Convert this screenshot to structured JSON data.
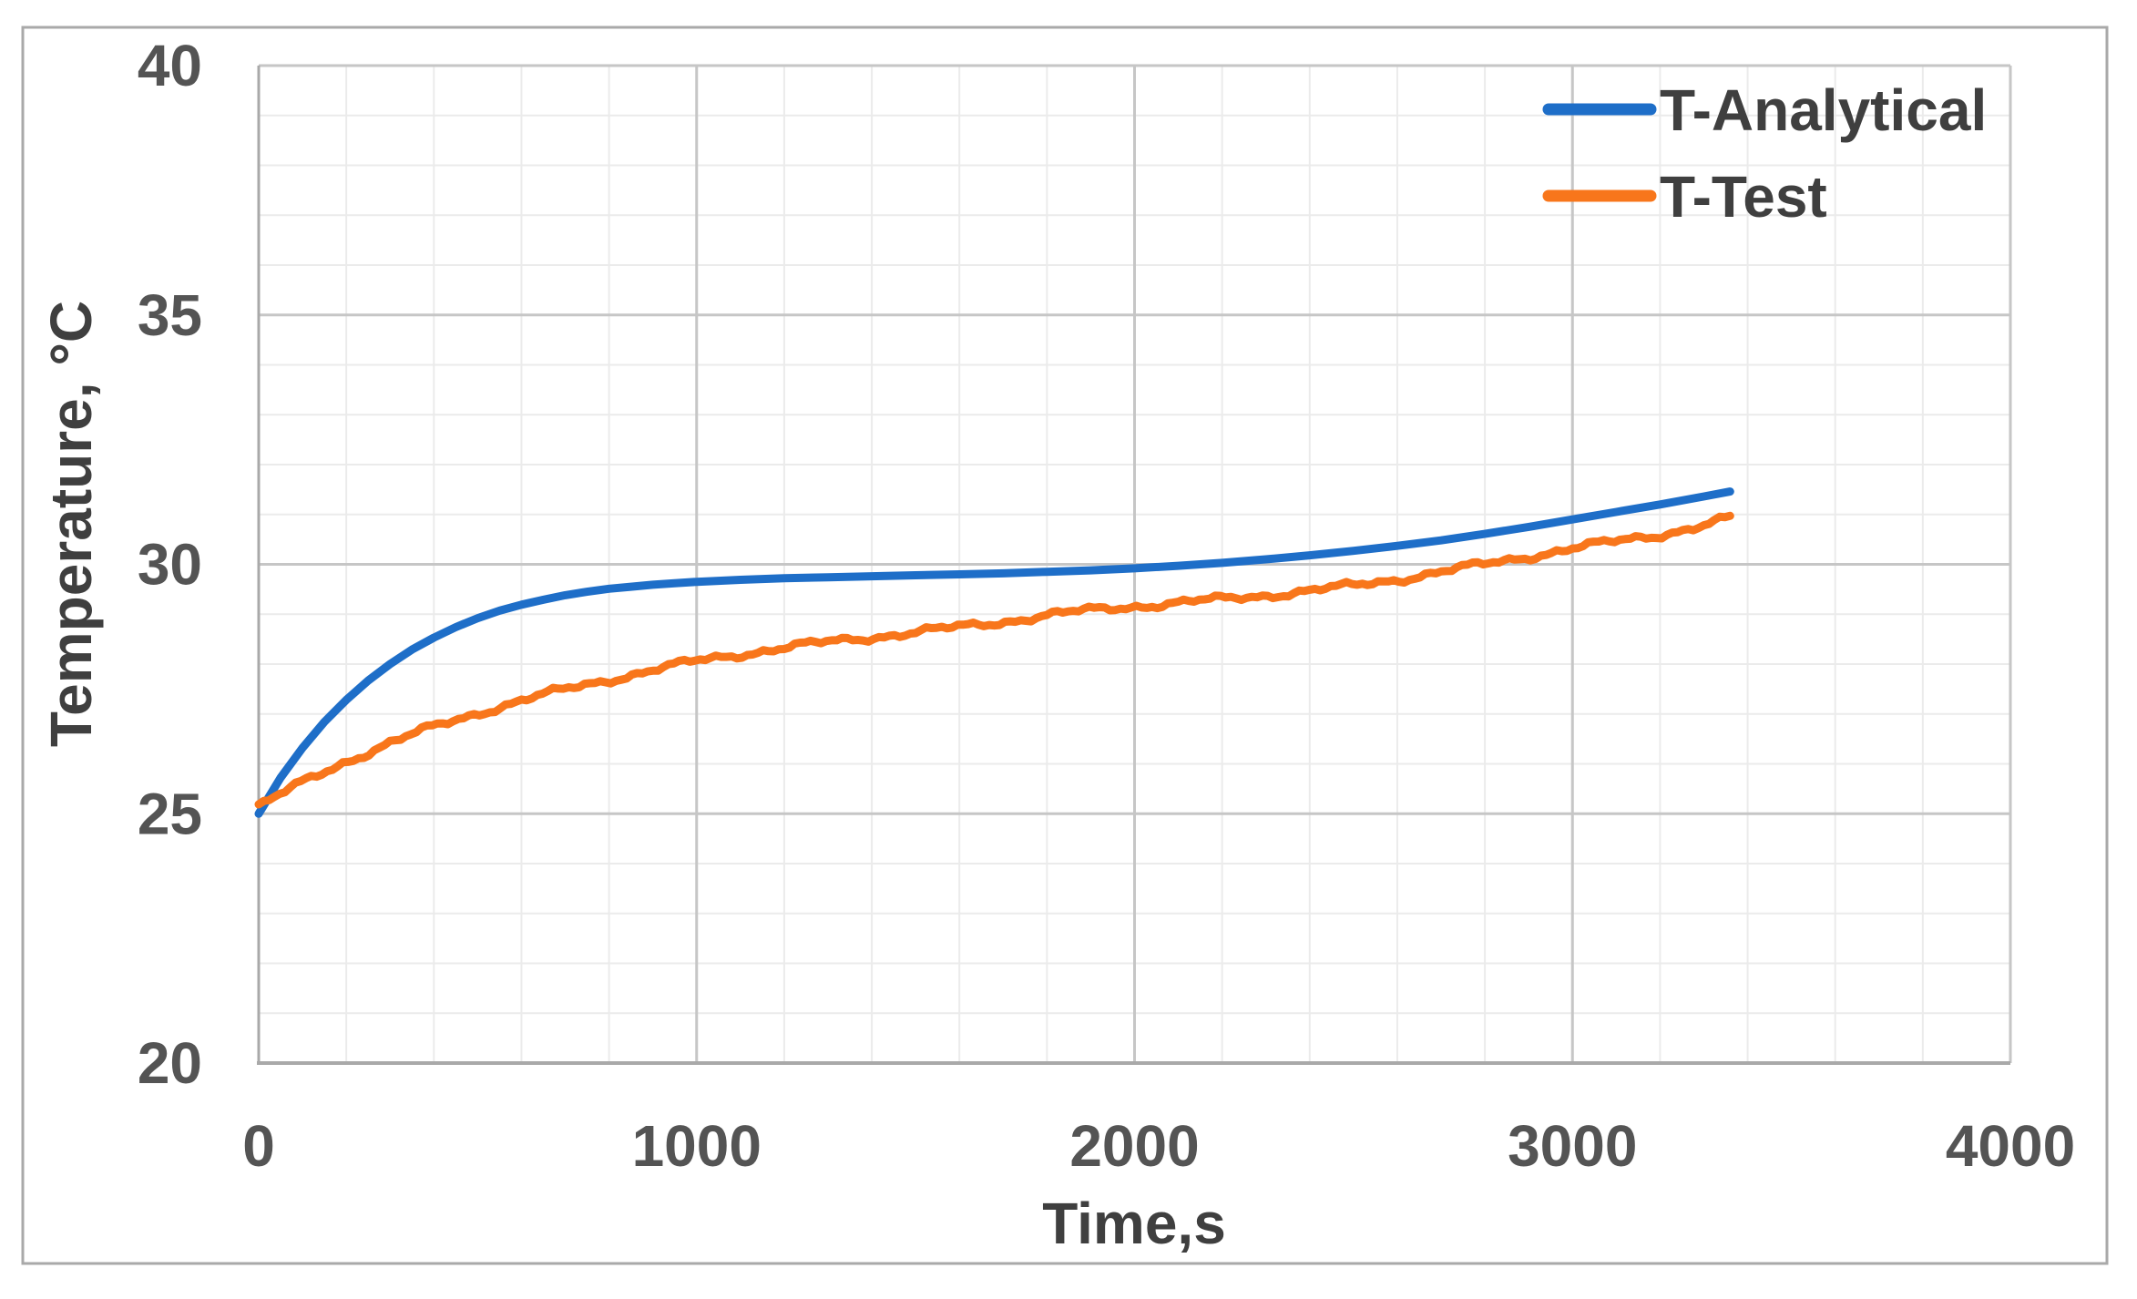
{
  "chart_data": {
    "type": "line",
    "title": "",
    "xlabel": "Time,s",
    "ylabel": "Temperature, °C",
    "xlim": [
      0,
      4000
    ],
    "ylim": [
      20,
      40
    ],
    "x_ticks": [
      0,
      1000,
      2000,
      3000,
      4000
    ],
    "x_tick_labels": [
      "0",
      "1000",
      "2000",
      "3000",
      "4000"
    ],
    "y_ticks": [
      20,
      25,
      30,
      35,
      40
    ],
    "y_tick_labels": [
      "20",
      "25",
      "30",
      "35",
      "40"
    ],
    "x_minor_step": 200,
    "y_minor_step": 1,
    "grid": "major+minor",
    "legend_position": "top-right-inside",
    "colors": {
      "major_grid": "#c6c6c6",
      "minor_grid": "#ebebeb",
      "axis_line": "#a9a9a9",
      "frame_border": "#a9a9a9",
      "tick_label": "#545454",
      "axis_title": "#3f3f3f"
    },
    "series": [
      {
        "name": "T-Analytical",
        "color": "#1e6ec8",
        "style": "smooth",
        "points": [
          [
            0,
            25.0
          ],
          [
            50,
            25.72
          ],
          [
            100,
            26.32
          ],
          [
            150,
            26.84
          ],
          [
            200,
            27.28
          ],
          [
            250,
            27.67
          ],
          [
            300,
            28.0
          ],
          [
            350,
            28.29
          ],
          [
            400,
            28.53
          ],
          [
            450,
            28.74
          ],
          [
            500,
            28.92
          ],
          [
            550,
            29.07
          ],
          [
            600,
            29.19
          ],
          [
            650,
            29.29
          ],
          [
            700,
            29.38
          ],
          [
            750,
            29.45
          ],
          [
            800,
            29.51
          ],
          [
            850,
            29.55
          ],
          [
            900,
            29.59
          ],
          [
            950,
            29.62
          ],
          [
            1000,
            29.65
          ],
          [
            1100,
            29.69
          ],
          [
            1200,
            29.72
          ],
          [
            1300,
            29.74
          ],
          [
            1400,
            29.76
          ],
          [
            1500,
            29.78
          ],
          [
            1600,
            29.8
          ],
          [
            1700,
            29.82
          ],
          [
            1800,
            29.85
          ],
          [
            1900,
            29.88
          ],
          [
            2000,
            29.92
          ],
          [
            2100,
            29.97
          ],
          [
            2200,
            30.03
          ],
          [
            2300,
            30.1
          ],
          [
            2400,
            30.18
          ],
          [
            2500,
            30.27
          ],
          [
            2600,
            30.37
          ],
          [
            2700,
            30.48
          ],
          [
            2800,
            30.61
          ],
          [
            2900,
            30.75
          ],
          [
            3000,
            30.9
          ],
          [
            3100,
            31.05
          ],
          [
            3200,
            31.2
          ],
          [
            3300,
            31.36
          ],
          [
            3360,
            31.46
          ]
        ]
      },
      {
        "name": "T-Test",
        "color": "#f8761b",
        "style": "noisy",
        "noise_amplitude": 0.08,
        "points": [
          [
            0,
            25.15
          ],
          [
            100,
            25.62
          ],
          [
            200,
            26.05
          ],
          [
            300,
            26.42
          ],
          [
            400,
            26.74
          ],
          [
            500,
            27.02
          ],
          [
            600,
            27.27
          ],
          [
            700,
            27.49
          ],
          [
            800,
            27.69
          ],
          [
            900,
            27.88
          ],
          [
            1000,
            28.06
          ],
          [
            1100,
            28.2
          ],
          [
            1200,
            28.33
          ],
          [
            1300,
            28.44
          ],
          [
            1400,
            28.54
          ],
          [
            1500,
            28.64
          ],
          [
            1600,
            28.74
          ],
          [
            1700,
            28.85
          ],
          [
            1800,
            28.98
          ],
          [
            1900,
            29.08
          ],
          [
            2000,
            29.16
          ],
          [
            2100,
            29.23
          ],
          [
            2200,
            29.3
          ],
          [
            2300,
            29.38
          ],
          [
            2400,
            29.47
          ],
          [
            2500,
            29.57
          ],
          [
            2600,
            29.7
          ],
          [
            2700,
            29.85
          ],
          [
            2800,
            30.0
          ],
          [
            2900,
            30.16
          ],
          [
            3000,
            30.32
          ],
          [
            3100,
            30.46
          ],
          [
            3200,
            30.6
          ],
          [
            3300,
            30.78
          ],
          [
            3360,
            30.93
          ]
        ]
      }
    ]
  }
}
